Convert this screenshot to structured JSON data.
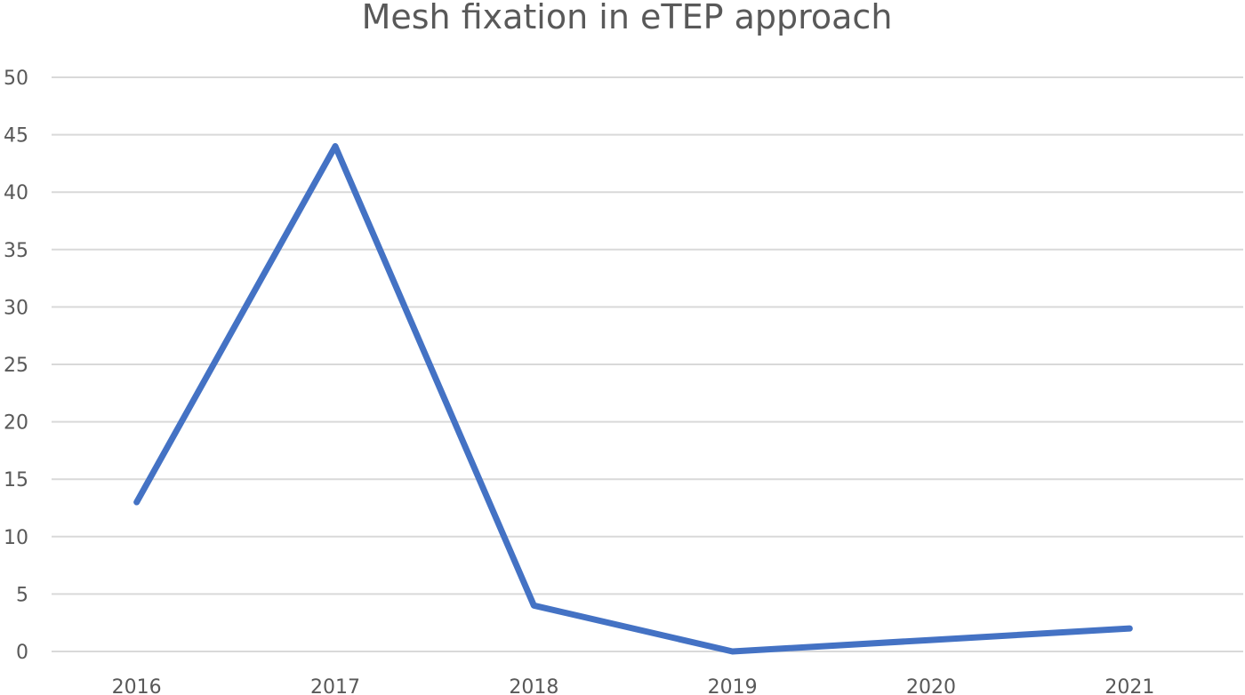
{
  "chart_data": {
    "type": "line",
    "title": "Mesh fixation in eTEP approach",
    "xlabel": "",
    "ylabel": "",
    "categories": [
      "2016",
      "2017",
      "2018",
      "2019",
      "2020",
      "2021"
    ],
    "series": [
      {
        "values": [
          13,
          44,
          4,
          0,
          1,
          2
        ],
        "color": "#4472c4"
      }
    ],
    "ylim": [
      0,
      50
    ],
    "yticks": [
      0,
      5,
      10,
      15,
      20,
      25,
      30,
      35,
      40,
      45,
      50
    ],
    "grid": true,
    "legend": "none"
  },
  "colors": {
    "gridline": "#d9d9d9",
    "text": "#595959",
    "series": "#4472c4"
  }
}
